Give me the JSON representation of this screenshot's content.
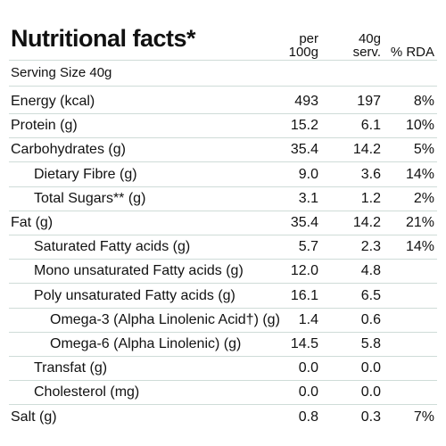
{
  "title": "Nutritional facts*",
  "header": {
    "columns": [
      [
        "per",
        "100g"
      ],
      [
        "40g",
        "serv."
      ],
      [
        "% RDA"
      ]
    ]
  },
  "serving_size": "Serving Size 40g",
  "table": {
    "rows": [
      {
        "label": "Energy (kcal)",
        "per100g": "493",
        "serving": "197",
        "rda": "8%"
      },
      {
        "label": "Protein (g)",
        "per100g": "15.2",
        "serving": "6.1",
        "rda": "10%"
      },
      {
        "label": "Carbohydrates (g)",
        "per100g": "35.4",
        "serving": "14.2",
        "rda": "5%",
        "sub": [
          {
            "label": "Dietary Fibre (g)",
            "per100g": "9.0",
            "serving": "3.6",
            "rda": "14%"
          },
          {
            "label": "Total Sugars** (g)",
            "per100g": "3.1",
            "serving": "1.2",
            "rda": "2%"
          }
        ]
      },
      {
        "label": "Fat (g)",
        "per100g": "35.4",
        "serving": "14.2",
        "rda": "21%",
        "sub": [
          {
            "label": "Saturated Fatty acids (g)",
            "per100g": "5.7",
            "serving": "2.3",
            "rda": "14%"
          },
          {
            "label": "Mono unsaturated Fatty acids (g)",
            "per100g": "12.0",
            "serving": "4.8"
          },
          {
            "label": "Poly unsaturated Fatty acids (g)",
            "per100g": "16.1",
            "serving": "6.5",
            "sub": [
              {
                "label": "Omega-3 (Alpha Linolenic Acid†) (g)",
                "per100g": "1.4",
                "serving": "0.6"
              },
              {
                "label": "Omega-6 (Alpha Linolenic) (g)",
                "per100g": "14.5",
                "serving": "5.8"
              }
            ]
          },
          {
            "label": "Transfat (g)",
            "per100g": "0.0",
            "serving": "0.0"
          },
          {
            "label": "Cholesterol (mg)",
            "per100g": "0.0",
            "serving": "0.0"
          }
        ]
      },
      {
        "label": "Salt (g)",
        "per100g": "0.8",
        "serving": "0.3",
        "rda": "7%"
      }
    ]
  }
}
